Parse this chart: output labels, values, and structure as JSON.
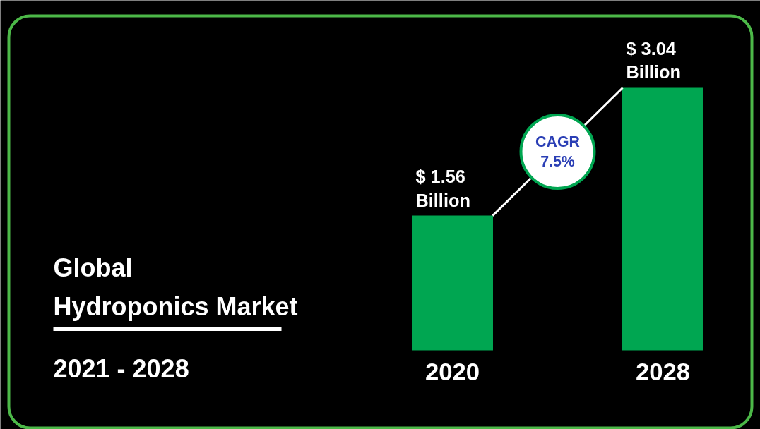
{
  "chart_data": {
    "type": "bar",
    "title": "Global\nHydroponics Market",
    "subtitle": "2021 - 2028",
    "categories": [
      "2020",
      "2028"
    ],
    "values": [
      1.56,
      3.04
    ],
    "color": "#00a651",
    "value_labels": [
      "$ 1.56\nBillion",
      "$ 3.04\nBillion"
    ],
    "annotations": [
      "CAGR\n7.5%"
    ]
  }
}
